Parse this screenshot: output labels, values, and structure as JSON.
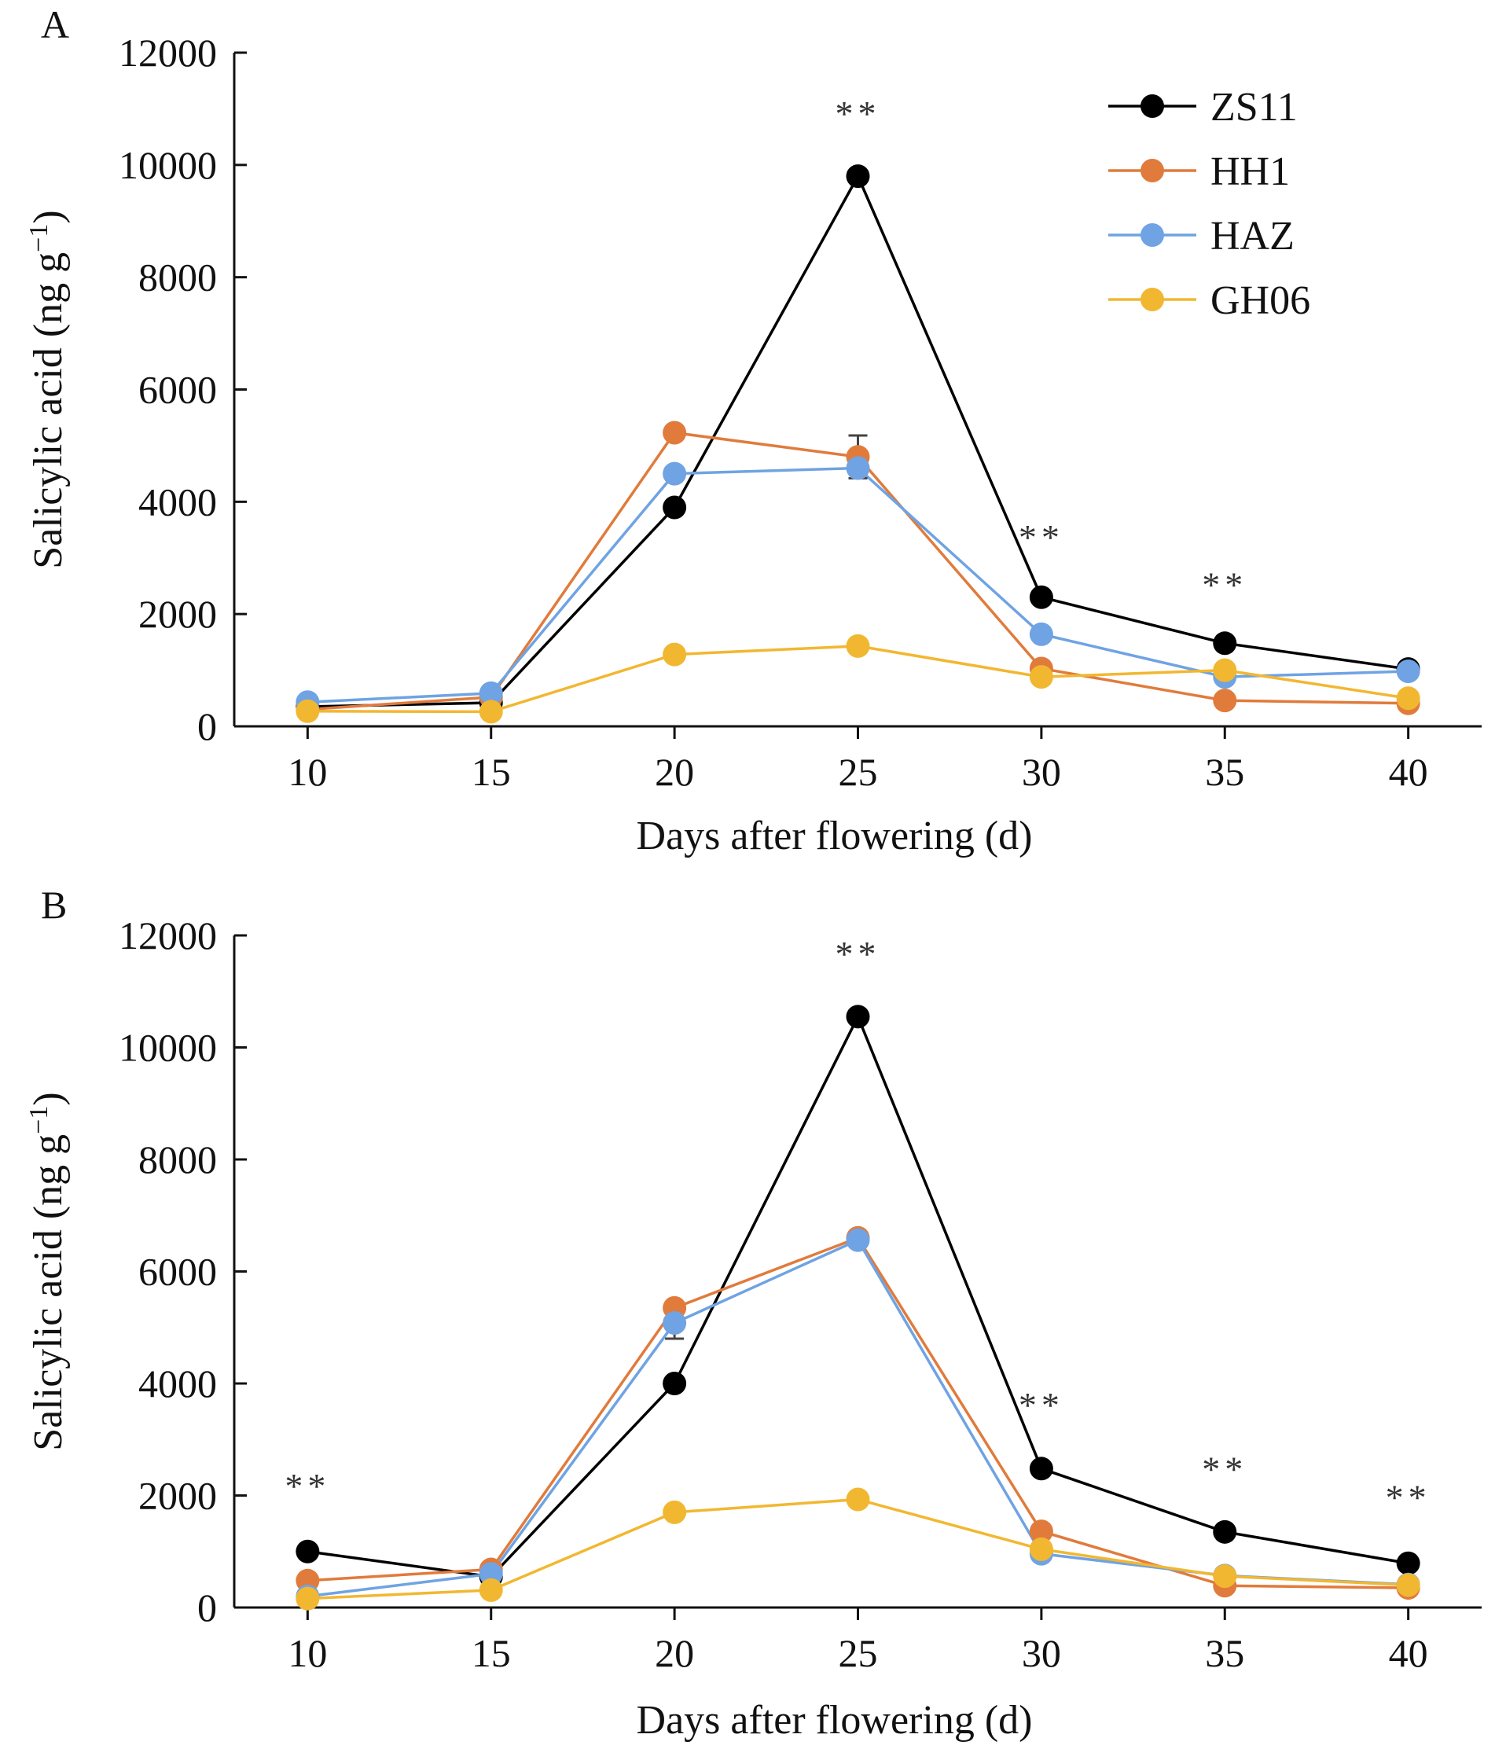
{
  "legend": [
    "ZS11",
    "HH1",
    "HAZ",
    "GH06"
  ],
  "colors": {
    "ZS11": "#000000",
    "HH1": "#E07B3C",
    "HAZ": "#6FA3E3",
    "GH06": "#F2B731"
  },
  "chart_data": [
    {
      "type": "line",
      "panel": "A",
      "xlabel": "Days after flowering (d)",
      "ylabel_main": "Salicylic acid (ng g",
      "ylabel_sup": "−1",
      "ylabel_close": ")",
      "ylim": [
        0,
        12000
      ],
      "xlim": [
        8,
        42
      ],
      "yticks": [
        0,
        2000,
        4000,
        6000,
        8000,
        10000,
        12000
      ],
      "xticks": [
        10,
        15,
        20,
        25,
        30,
        35,
        40
      ],
      "x": [
        10,
        15,
        20,
        25,
        30,
        35,
        40
      ],
      "series": [
        {
          "name": "ZS11",
          "values": [
            350,
            420,
            3900,
            9800,
            2300,
            1480,
            1020
          ]
        },
        {
          "name": "HH1",
          "values": [
            300,
            520,
            5230,
            4800,
            1030,
            460,
            410
          ]
        },
        {
          "name": "HAZ",
          "values": [
            430,
            590,
            4500,
            4600,
            1640,
            880,
            980
          ]
        },
        {
          "name": "GH06",
          "values": [
            270,
            260,
            1280,
            1430,
            880,
            1000,
            500
          ]
        }
      ],
      "error_bars": [
        {
          "series": "HH1",
          "x": 25,
          "err": 380
        }
      ],
      "annotations": [
        {
          "x": 25,
          "y": 10700,
          "text": "**"
        },
        {
          "x": 30,
          "y": 3150,
          "text": "**"
        },
        {
          "x": 35,
          "y": 2300,
          "text": "**"
        }
      ],
      "show_legend": true,
      "legend_position": "top-right"
    },
    {
      "type": "line",
      "panel": "B",
      "xlabel": "Days after flowering (d)",
      "ylabel_main": "Salicylic acid (ng g",
      "ylabel_sup": "−1",
      "ylabel_close": ")",
      "ylim": [
        0,
        12000
      ],
      "xlim": [
        8,
        42
      ],
      "yticks": [
        0,
        2000,
        4000,
        6000,
        8000,
        10000,
        12000
      ],
      "xticks": [
        10,
        15,
        20,
        25,
        30,
        35,
        40
      ],
      "x": [
        10,
        15,
        20,
        25,
        30,
        35,
        40
      ],
      "series": [
        {
          "name": "ZS11",
          "values": [
            1000,
            550,
            4000,
            10550,
            2480,
            1350,
            790
          ]
        },
        {
          "name": "HH1",
          "values": [
            480,
            680,
            5350,
            6600,
            1360,
            390,
            350
          ]
        },
        {
          "name": "HAZ",
          "values": [
            200,
            600,
            5080,
            6560,
            960,
            570,
            410
          ]
        },
        {
          "name": "GH06",
          "values": [
            160,
            310,
            1700,
            1930,
            1040,
            560,
            400
          ]
        }
      ],
      "error_bars": [
        {
          "series": "HAZ",
          "x": 20,
          "err": 280
        }
      ],
      "annotations": [
        {
          "x": 10,
          "y": 1950,
          "text": "**"
        },
        {
          "x": 25,
          "y": 11450,
          "text": "**"
        },
        {
          "x": 30,
          "y": 3400,
          "text": "**"
        },
        {
          "x": 35,
          "y": 2250,
          "text": "**"
        },
        {
          "x": 40,
          "y": 1750,
          "text": "**"
        }
      ],
      "show_legend": false
    }
  ]
}
